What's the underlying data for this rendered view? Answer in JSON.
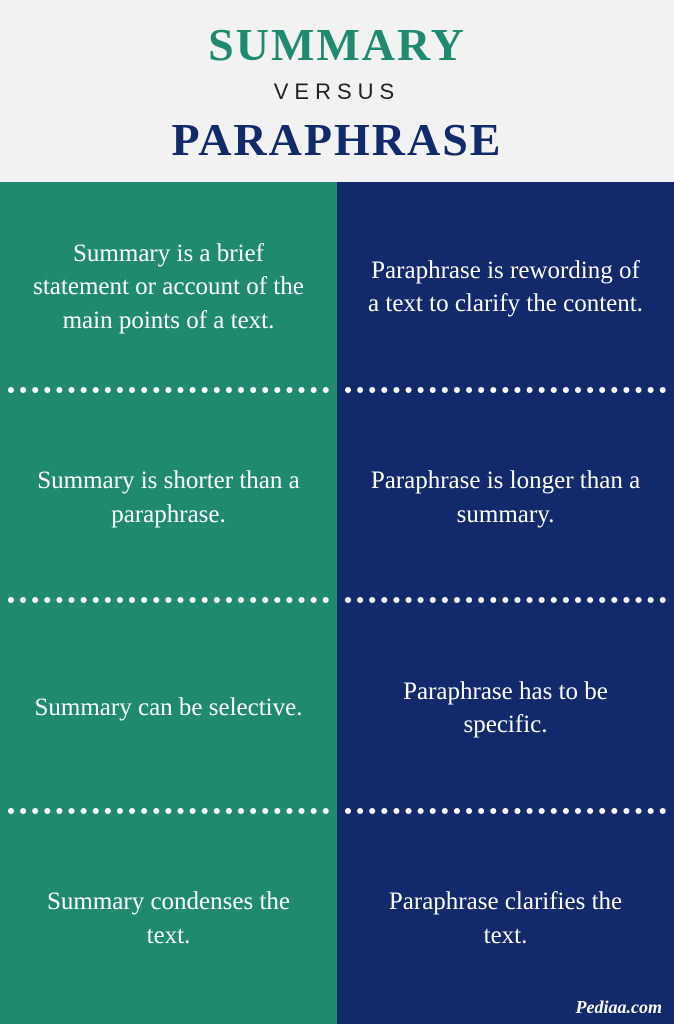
{
  "header": {
    "top": "SUMMARY",
    "versus": "VERSUS",
    "bottom": "PARAPHRASE",
    "top_color": "#1f8a70",
    "versus_color": "#222222",
    "bottom_color": "#12296b",
    "top_fontsize": 46,
    "versus_fontsize": 22,
    "bottom_fontsize": 46,
    "background": "#f2f2f2"
  },
  "columns": {
    "left": {
      "background": "#1f8a70",
      "text_color": "#ffffff",
      "cells": [
        "Summary is a brief statement or account of the main points of a text.",
        "Summary is shorter than a paraphrase.",
        "Summary can be selective.",
        "Summary condenses the text."
      ]
    },
    "right": {
      "background": "#12296b",
      "text_color": "#ffffff",
      "cells": [
        "Paraphrase is rewording of a text to clarify the content.",
        "Paraphrase is longer than a summary.",
        "Paraphrase has to be specific.",
        "Paraphrase clarifies the text."
      ]
    },
    "cell_fontsize": 25,
    "divider_color": "#ffffff"
  },
  "footer": {
    "text": "Pediaa.com",
    "color": "#ffffff",
    "fontsize": 18
  }
}
